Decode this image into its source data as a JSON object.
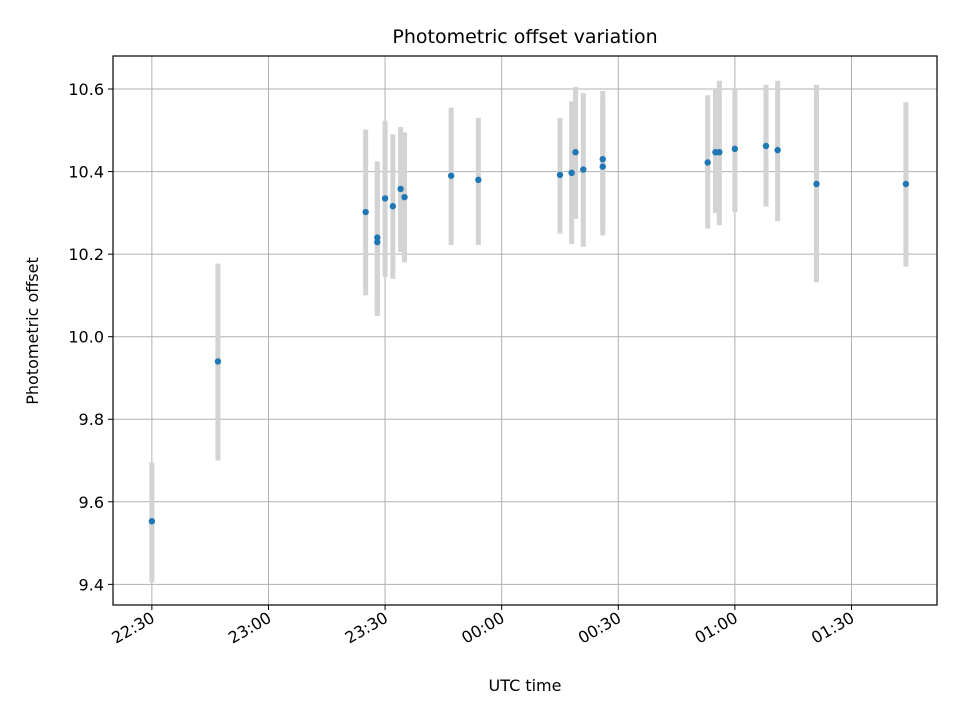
{
  "chart_data": {
    "type": "scatter",
    "title": "Photometric offset variation",
    "xlabel": "UTC time",
    "ylabel": "Photometric offset",
    "x_is_time": true,
    "xlim": [
      "22:20",
      "01:52"
    ],
    "ylim": [
      9.35,
      10.68
    ],
    "grid": true,
    "x_ticks": [
      "22:30",
      "23:00",
      "23:30",
      "00:00",
      "00:30",
      "01:00",
      "01:30"
    ],
    "y_ticks": [
      9.4,
      9.6,
      9.8,
      10.0,
      10.2,
      10.4,
      10.6
    ],
    "colors": {
      "point": "#1f77b4",
      "errorbar": "#d3d3d3",
      "grid": "#b0b0b0"
    },
    "points": [
      {
        "x": "22:30",
        "y": 9.553,
        "err_low": 9.405,
        "err_high": 9.695
      },
      {
        "x": "22:47",
        "y": 9.94,
        "err_low": 9.7,
        "err_high": 10.177
      },
      {
        "x": "23:25",
        "y": 10.302,
        "err_low": 10.1,
        "err_high": 10.502
      },
      {
        "x": "23:28",
        "y": 10.229,
        "err_low": 10.05,
        "err_high": 10.405
      },
      {
        "x": "23:28",
        "y": 10.24,
        "err_low": 10.055,
        "err_high": 10.425
      },
      {
        "x": "23:30",
        "y": 10.335,
        "err_low": 10.145,
        "err_high": 10.523
      },
      {
        "x": "23:32",
        "y": 10.316,
        "err_low": 10.14,
        "err_high": 10.49
      },
      {
        "x": "23:34",
        "y": 10.358,
        "err_low": 10.205,
        "err_high": 10.508
      },
      {
        "x": "23:35",
        "y": 10.338,
        "err_low": 10.18,
        "err_high": 10.495
      },
      {
        "x": "23:47",
        "y": 10.39,
        "err_low": 10.222,
        "err_high": 10.555
      },
      {
        "x": "23:54",
        "y": 10.38,
        "err_low": 10.222,
        "err_high": 10.53
      },
      {
        "x": "00:15",
        "y": 10.392,
        "err_low": 10.25,
        "err_high": 10.53
      },
      {
        "x": "00:18",
        "y": 10.397,
        "err_low": 10.225,
        "err_high": 10.57
      },
      {
        "x": "00:19",
        "y": 10.447,
        "err_low": 10.285,
        "err_high": 10.605
      },
      {
        "x": "00:21",
        "y": 10.405,
        "err_low": 10.218,
        "err_high": 10.59
      },
      {
        "x": "00:26",
        "y": 10.43,
        "err_low": 10.26,
        "err_high": 10.595
      },
      {
        "x": "00:26",
        "y": 10.412,
        "err_low": 10.245,
        "err_high": 10.58
      },
      {
        "x": "00:53",
        "y": 10.422,
        "err_low": 10.262,
        "err_high": 10.585
      },
      {
        "x": "00:55",
        "y": 10.447,
        "err_low": 10.3,
        "err_high": 10.6
      },
      {
        "x": "00:56",
        "y": 10.447,
        "err_low": 10.27,
        "err_high": 10.62
      },
      {
        "x": "01:00",
        "y": 10.455,
        "err_low": 10.302,
        "err_high": 10.603
      },
      {
        "x": "01:08",
        "y": 10.462,
        "err_low": 10.315,
        "err_high": 10.61
      },
      {
        "x": "01:11",
        "y": 10.452,
        "err_low": 10.28,
        "err_high": 10.62
      },
      {
        "x": "01:21",
        "y": 10.37,
        "err_low": 10.132,
        "err_high": 10.61
      },
      {
        "x": "01:44",
        "y": 10.37,
        "err_low": 10.17,
        "err_high": 10.568
      }
    ]
  }
}
